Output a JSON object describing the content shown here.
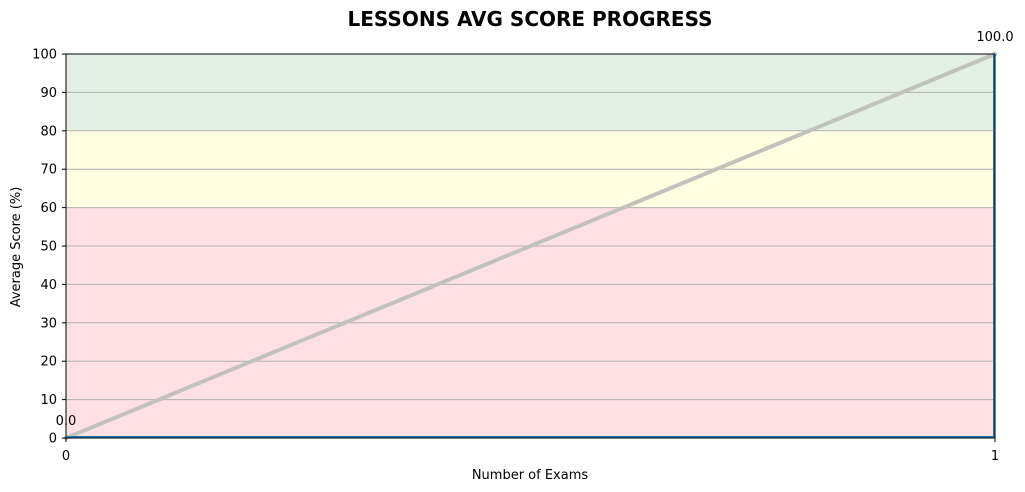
{
  "chart_data": {
    "type": "line",
    "title": "LESSONS AVG SCORE PROGRESS",
    "xlabel": "Number of Exams",
    "ylabel": "Average Score (%)",
    "xlim": [
      0,
      1
    ],
    "ylim": [
      0,
      100
    ],
    "x_ticks": [
      "0",
      "1"
    ],
    "y_ticks": [
      "0",
      "10",
      "20",
      "30",
      "40",
      "50",
      "60",
      "70",
      "80",
      "90",
      "100"
    ],
    "grid": "horizontal",
    "bands": [
      {
        "from": 0,
        "to": 60,
        "color": "#ffe1e3"
      },
      {
        "from": 60,
        "to": 80,
        "color": "#ffffe2"
      },
      {
        "from": 80,
        "to": 100,
        "color": "#e4f0e4"
      }
    ],
    "series": [
      {
        "x": [
          0,
          1
        ],
        "values": [
          0,
          100
        ],
        "labels": [
          "0.0",
          "100.0"
        ],
        "color": "#c2c2bc"
      }
    ],
    "accent_color": "#1f77b4"
  }
}
